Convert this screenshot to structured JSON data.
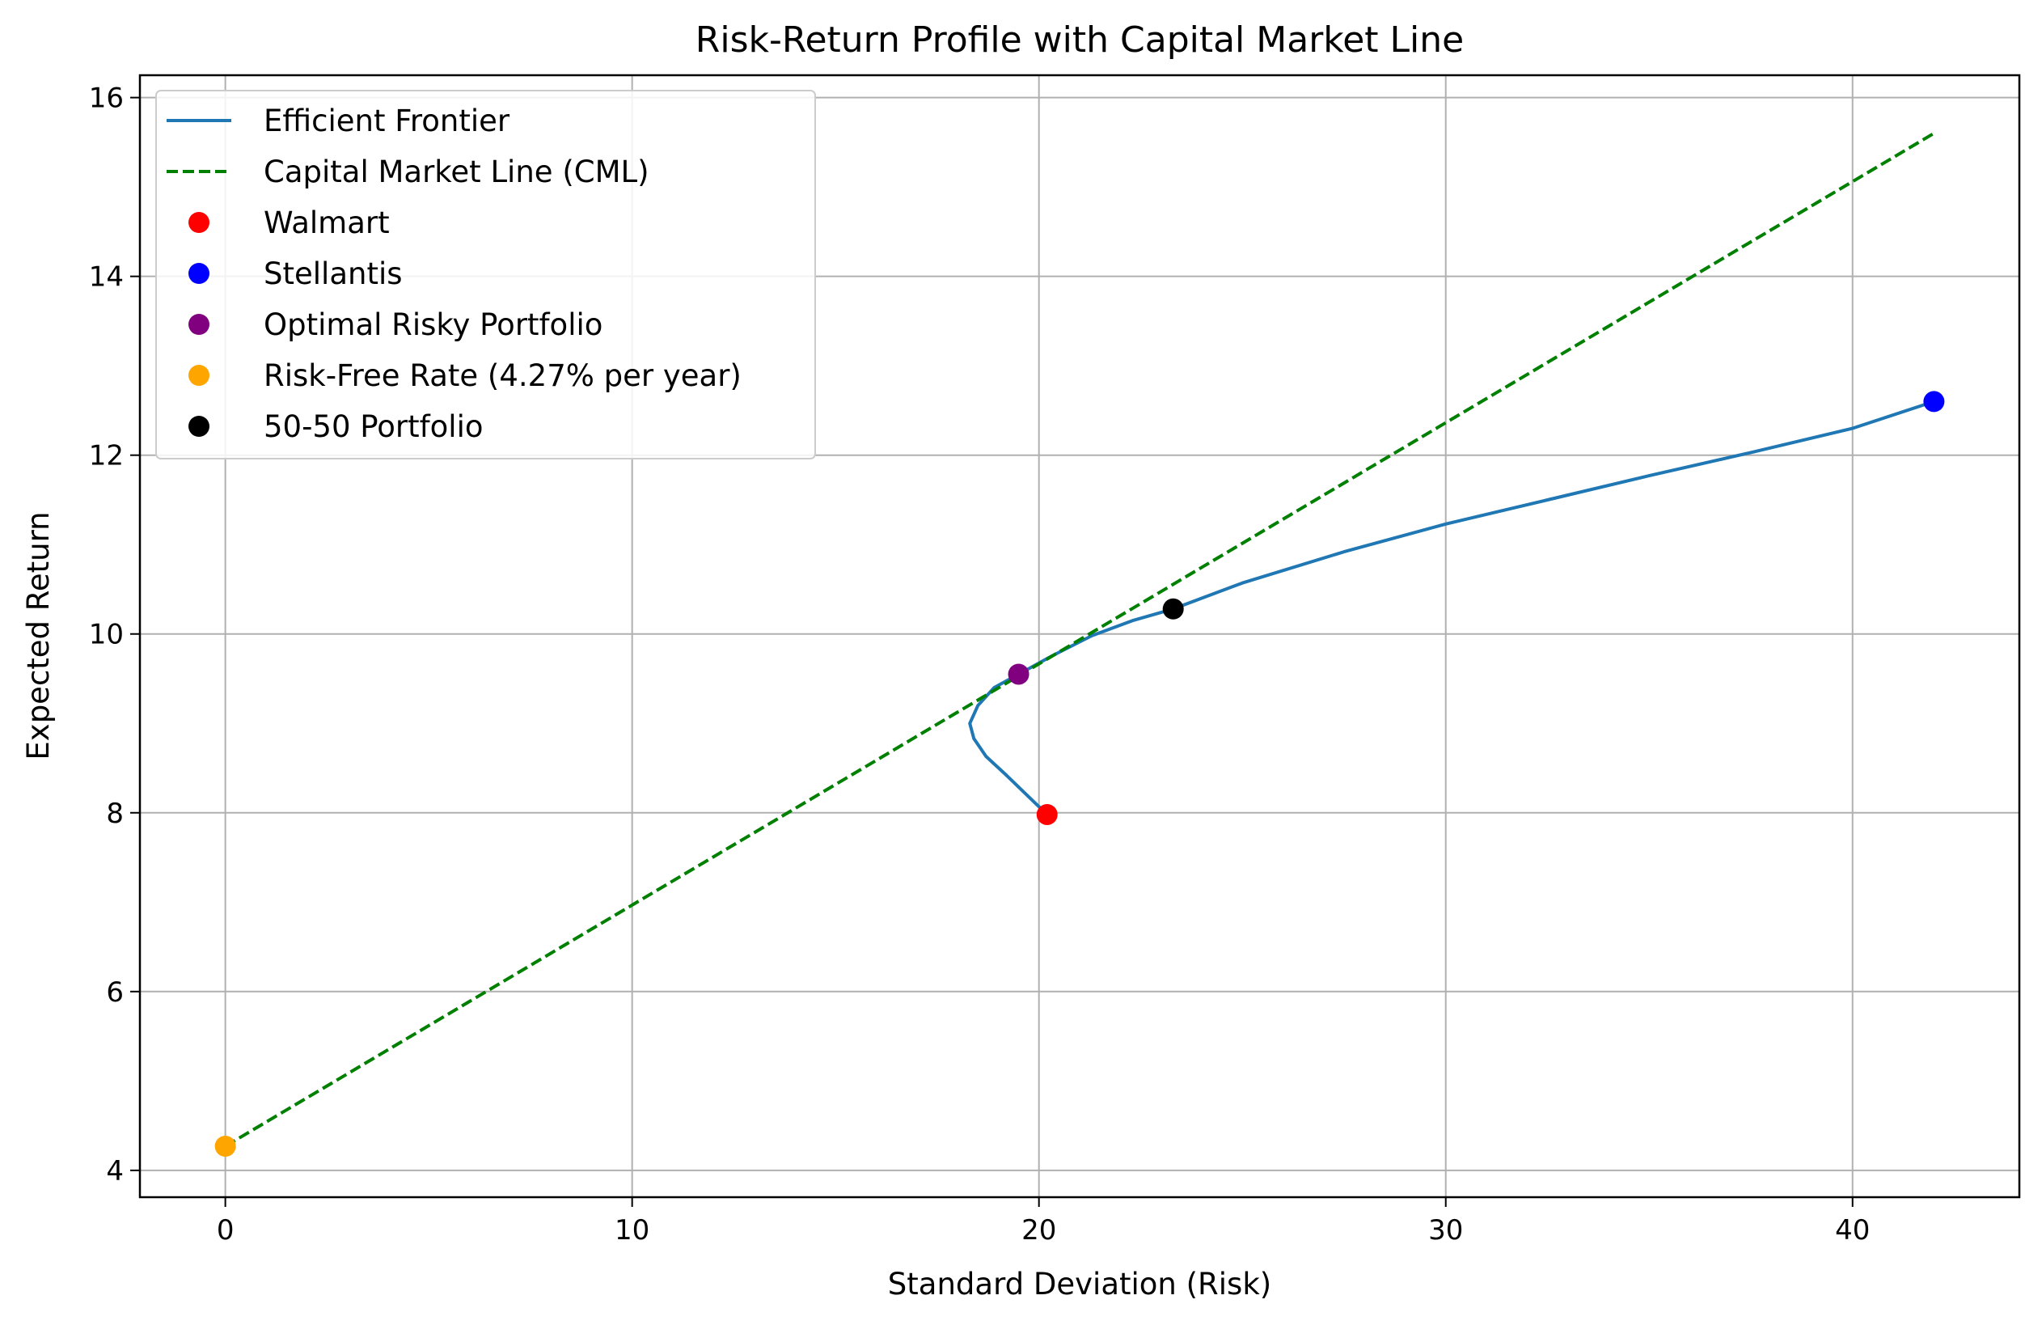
{
  "chart_data": {
    "type": "line",
    "title": "Risk-Return Profile with Capital Market Line",
    "xlabel": "Standard Deviation (Risk)",
    "ylabel": "Expected Return",
    "xlim": [
      -2.1,
      44.1
    ],
    "ylim": [
      3.7,
      16.25
    ],
    "xticks": [
      0,
      10,
      20,
      30,
      40
    ],
    "yticks": [
      4,
      6,
      8,
      10,
      12,
      14,
      16
    ],
    "grid": true,
    "legend_position": "upper left",
    "colors": {
      "frontier": "#1f77b4",
      "cml": "#008000",
      "walmart": "#ff0000",
      "stellantis": "#0000ff",
      "optimal": "#800080",
      "risk_free": "#ffa500",
      "fifty_fifty": "#000000",
      "grid": "#b0b0b0"
    },
    "series": [
      {
        "name": "Efficient Frontier",
        "kind": "line",
        "style": "solid",
        "color_key": "frontier",
        "points": [
          [
            20.2,
            7.98
          ],
          [
            19.7,
            8.2
          ],
          [
            19.2,
            8.42
          ],
          [
            18.7,
            8.63
          ],
          [
            18.4,
            8.83
          ],
          [
            18.3,
            9.0
          ],
          [
            18.5,
            9.2
          ],
          [
            18.9,
            9.4
          ],
          [
            19.5,
            9.55
          ],
          [
            20.3,
            9.75
          ],
          [
            21.3,
            9.98
          ],
          [
            22.3,
            10.15
          ],
          [
            23.3,
            10.28
          ],
          [
            25.0,
            10.57
          ],
          [
            27.5,
            10.92
          ],
          [
            30.0,
            11.23
          ],
          [
            32.5,
            11.5
          ],
          [
            35.0,
            11.77
          ],
          [
            37.5,
            12.03
          ],
          [
            40.0,
            12.3
          ],
          [
            42.0,
            12.6
          ]
        ]
      },
      {
        "name": "Capital Market Line (CML)",
        "kind": "line",
        "style": "dashed",
        "color_key": "cml",
        "points": [
          [
            0,
            4.27
          ],
          [
            42.0,
            15.6
          ]
        ]
      },
      {
        "name": "Walmart",
        "kind": "point",
        "color_key": "walmart",
        "x": 20.2,
        "y": 7.98
      },
      {
        "name": "Stellantis",
        "kind": "point",
        "color_key": "stellantis",
        "x": 42.0,
        "y": 12.6
      },
      {
        "name": "Optimal Risky Portfolio",
        "kind": "point",
        "color_key": "optimal",
        "x": 19.5,
        "y": 9.55
      },
      {
        "name": "Risk-Free Rate (4.27% per year)",
        "kind": "point",
        "color_key": "risk_free",
        "x": 0,
        "y": 4.27
      },
      {
        "name": "50-50 Portfolio",
        "kind": "point",
        "color_key": "fifty_fifty",
        "x": 23.3,
        "y": 10.28
      }
    ]
  }
}
